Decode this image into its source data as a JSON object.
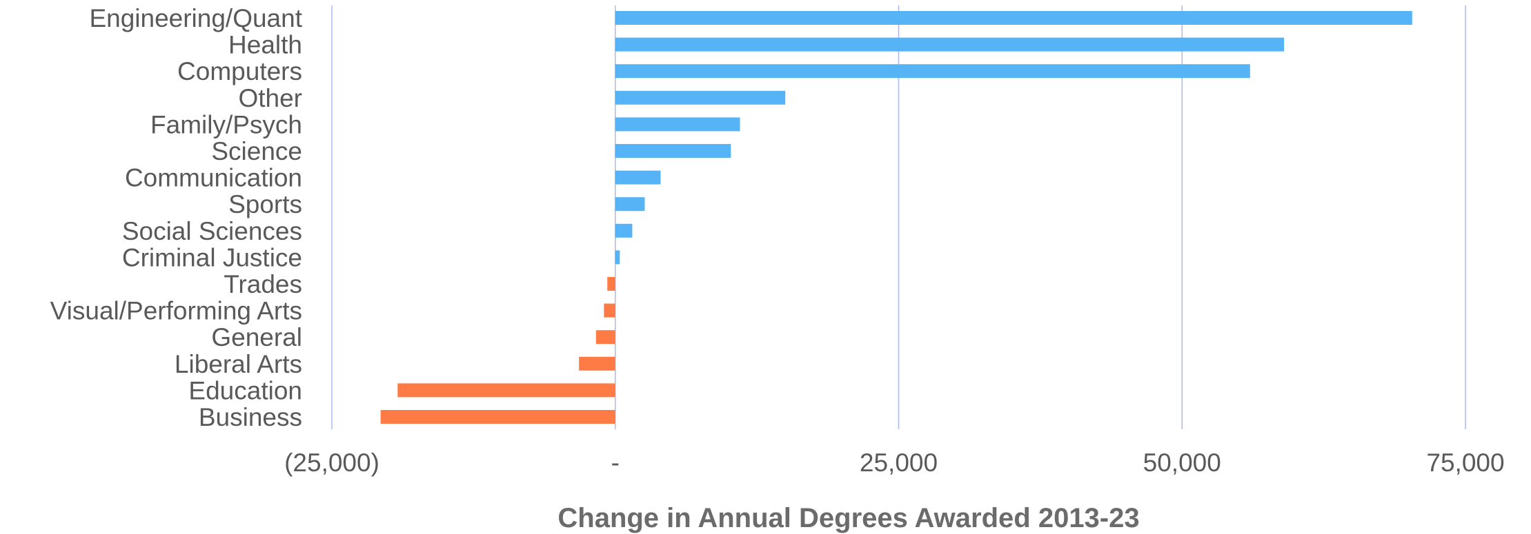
{
  "chart_data": {
    "type": "bar",
    "orientation": "horizontal",
    "categories": [
      "Engineering/Quant",
      "Health",
      "Computers",
      "Other",
      "Family/Psych",
      "Science",
      "Communication",
      "Sports",
      "Social Sciences",
      "Criminal Justice",
      "Trades",
      "Visual/Performing Arts",
      "General",
      "Liberal Arts",
      "Education",
      "Business"
    ],
    "values": [
      70300,
      59000,
      56000,
      15000,
      11000,
      10200,
      4000,
      2600,
      1500,
      400,
      -700,
      -1000,
      -1700,
      -3200,
      -19200,
      -20700
    ],
    "xlim": [
      -25000,
      75000
    ],
    "xticks": [
      -25000,
      0,
      25000,
      50000,
      75000
    ],
    "xtick_labels": [
      "(25,000)",
      "-",
      "25,000",
      "50,000",
      "75,000"
    ],
    "xlabel": "Change in Annual Degrees Awarded 2013-23",
    "ylabel": "",
    "title": "",
    "grid": "vertical",
    "legend": "none",
    "colors": {
      "positive": "#56b4f6",
      "negative": "#ff7b45",
      "grid": "#a9b9ef",
      "text": "#595959",
      "axis_title": "#6b6b6b"
    }
  }
}
